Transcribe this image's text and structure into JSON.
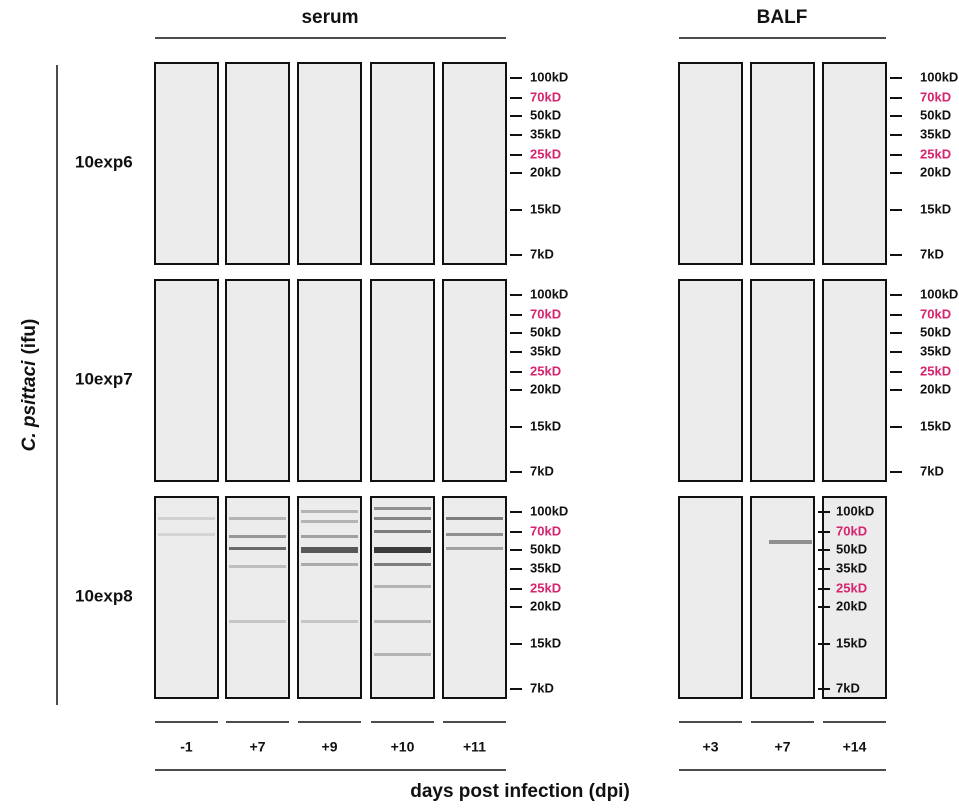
{
  "header": {
    "serum": "serum",
    "balf": "BALF"
  },
  "y_axis": {
    "italic": "C. psittaci",
    "unit": "(ifu)"
  },
  "rows": [
    "10exp6",
    "10exp7",
    "10exp8"
  ],
  "markers": [
    {
      "label": "100kD",
      "color": "#111111"
    },
    {
      "label": "70kD",
      "color": "#d6246e"
    },
    {
      "label": "50kD",
      "color": "#111111"
    },
    {
      "label": "35kD",
      "color": "#111111"
    },
    {
      "label": "25kD",
      "color": "#d6246e"
    },
    {
      "label": "20kD",
      "color": "#111111"
    },
    {
      "label": "15kD",
      "color": "#111111"
    },
    {
      "label": "7kD",
      "color": "#111111"
    }
  ],
  "lanes": {
    "serum": [
      "-1",
      "+7",
      "+9",
      "+10",
      "+11"
    ],
    "balf": [
      "+3",
      "+7",
      "+14"
    ]
  },
  "x_axis_title": "days post infection (dpi)"
}
